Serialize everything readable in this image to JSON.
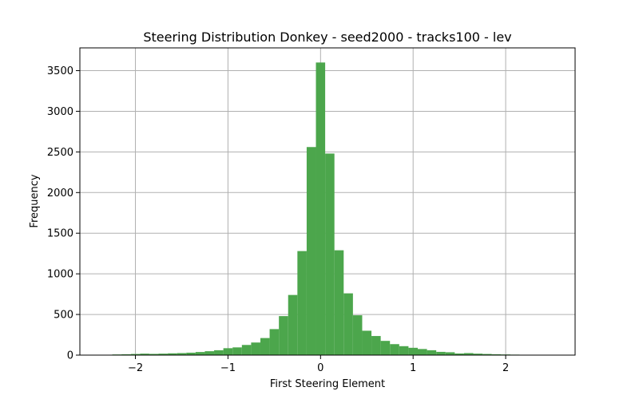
{
  "chart_data": {
    "type": "bar",
    "title": "Steering Distribution Donkey - seed2000 - tracks100 - lev",
    "xlabel": "First Steering Element",
    "ylabel": "Frequency",
    "xlim": [
      -2.6,
      2.75
    ],
    "ylim": [
      0,
      3780
    ],
    "xticks": [
      -2,
      -1,
      0,
      1,
      2
    ],
    "xtick_labels": [
      "−2",
      "−1",
      "0",
      "1",
      "2"
    ],
    "yticks": [
      0,
      500,
      1000,
      1500,
      2000,
      2500,
      3000,
      3500
    ],
    "grid": true,
    "bar_color": "#4ca64c",
    "bins": [
      {
        "x0": -2.25,
        "x1": -2.15,
        "value": 8
      },
      {
        "x0": -2.15,
        "x1": -2.05,
        "value": 10
      },
      {
        "x0": -2.05,
        "x1": -1.95,
        "value": 14
      },
      {
        "x0": -1.95,
        "x1": -1.85,
        "value": 18
      },
      {
        "x0": -1.85,
        "x1": -1.75,
        "value": 15
      },
      {
        "x0": -1.75,
        "x1": -1.65,
        "value": 18
      },
      {
        "x0": -1.65,
        "x1": -1.55,
        "value": 22
      },
      {
        "x0": -1.55,
        "x1": -1.45,
        "value": 25
      },
      {
        "x0": -1.45,
        "x1": -1.35,
        "value": 30
      },
      {
        "x0": -1.35,
        "x1": -1.25,
        "value": 38
      },
      {
        "x0": -1.25,
        "x1": -1.15,
        "value": 48
      },
      {
        "x0": -1.15,
        "x1": -1.05,
        "value": 60
      },
      {
        "x0": -1.05,
        "x1": -0.95,
        "value": 85
      },
      {
        "x0": -0.95,
        "x1": -0.85,
        "value": 95
      },
      {
        "x0": -0.85,
        "x1": -0.75,
        "value": 125
      },
      {
        "x0": -0.75,
        "x1": -0.65,
        "value": 155
      },
      {
        "x0": -0.65,
        "x1": -0.55,
        "value": 210
      },
      {
        "x0": -0.55,
        "x1": -0.45,
        "value": 320
      },
      {
        "x0": -0.45,
        "x1": -0.35,
        "value": 480
      },
      {
        "x0": -0.35,
        "x1": -0.25,
        "value": 740
      },
      {
        "x0": -0.25,
        "x1": -0.15,
        "value": 1280
      },
      {
        "x0": -0.15,
        "x1": -0.05,
        "value": 2560
      },
      {
        "x0": -0.05,
        "x1": 0.05,
        "value": 3600
      },
      {
        "x0": 0.05,
        "x1": 0.15,
        "value": 2480
      },
      {
        "x0": 0.15,
        "x1": 0.25,
        "value": 1290
      },
      {
        "x0": 0.25,
        "x1": 0.35,
        "value": 760
      },
      {
        "x0": 0.35,
        "x1": 0.45,
        "value": 490
      },
      {
        "x0": 0.45,
        "x1": 0.55,
        "value": 300
      },
      {
        "x0": 0.55,
        "x1": 0.65,
        "value": 235
      },
      {
        "x0": 0.65,
        "x1": 0.75,
        "value": 175
      },
      {
        "x0": 0.75,
        "x1": 0.85,
        "value": 135
      },
      {
        "x0": 0.85,
        "x1": 0.95,
        "value": 110
      },
      {
        "x0": 0.95,
        "x1": 1.05,
        "value": 90
      },
      {
        "x0": 1.05,
        "x1": 1.15,
        "value": 75
      },
      {
        "x0": 1.15,
        "x1": 1.25,
        "value": 60
      },
      {
        "x0": 1.25,
        "x1": 1.35,
        "value": 40
      },
      {
        "x0": 1.35,
        "x1": 1.45,
        "value": 35
      },
      {
        "x0": 1.45,
        "x1": 1.55,
        "value": 20
      },
      {
        "x0": 1.55,
        "x1": 1.65,
        "value": 25
      },
      {
        "x0": 1.65,
        "x1": 1.75,
        "value": 18
      },
      {
        "x0": 1.75,
        "x1": 1.85,
        "value": 14
      },
      {
        "x0": 1.85,
        "x1": 1.95,
        "value": 10
      },
      {
        "x0": 1.95,
        "x1": 2.05,
        "value": 8
      },
      {
        "x0": 2.05,
        "x1": 2.15,
        "value": 6
      }
    ]
  }
}
